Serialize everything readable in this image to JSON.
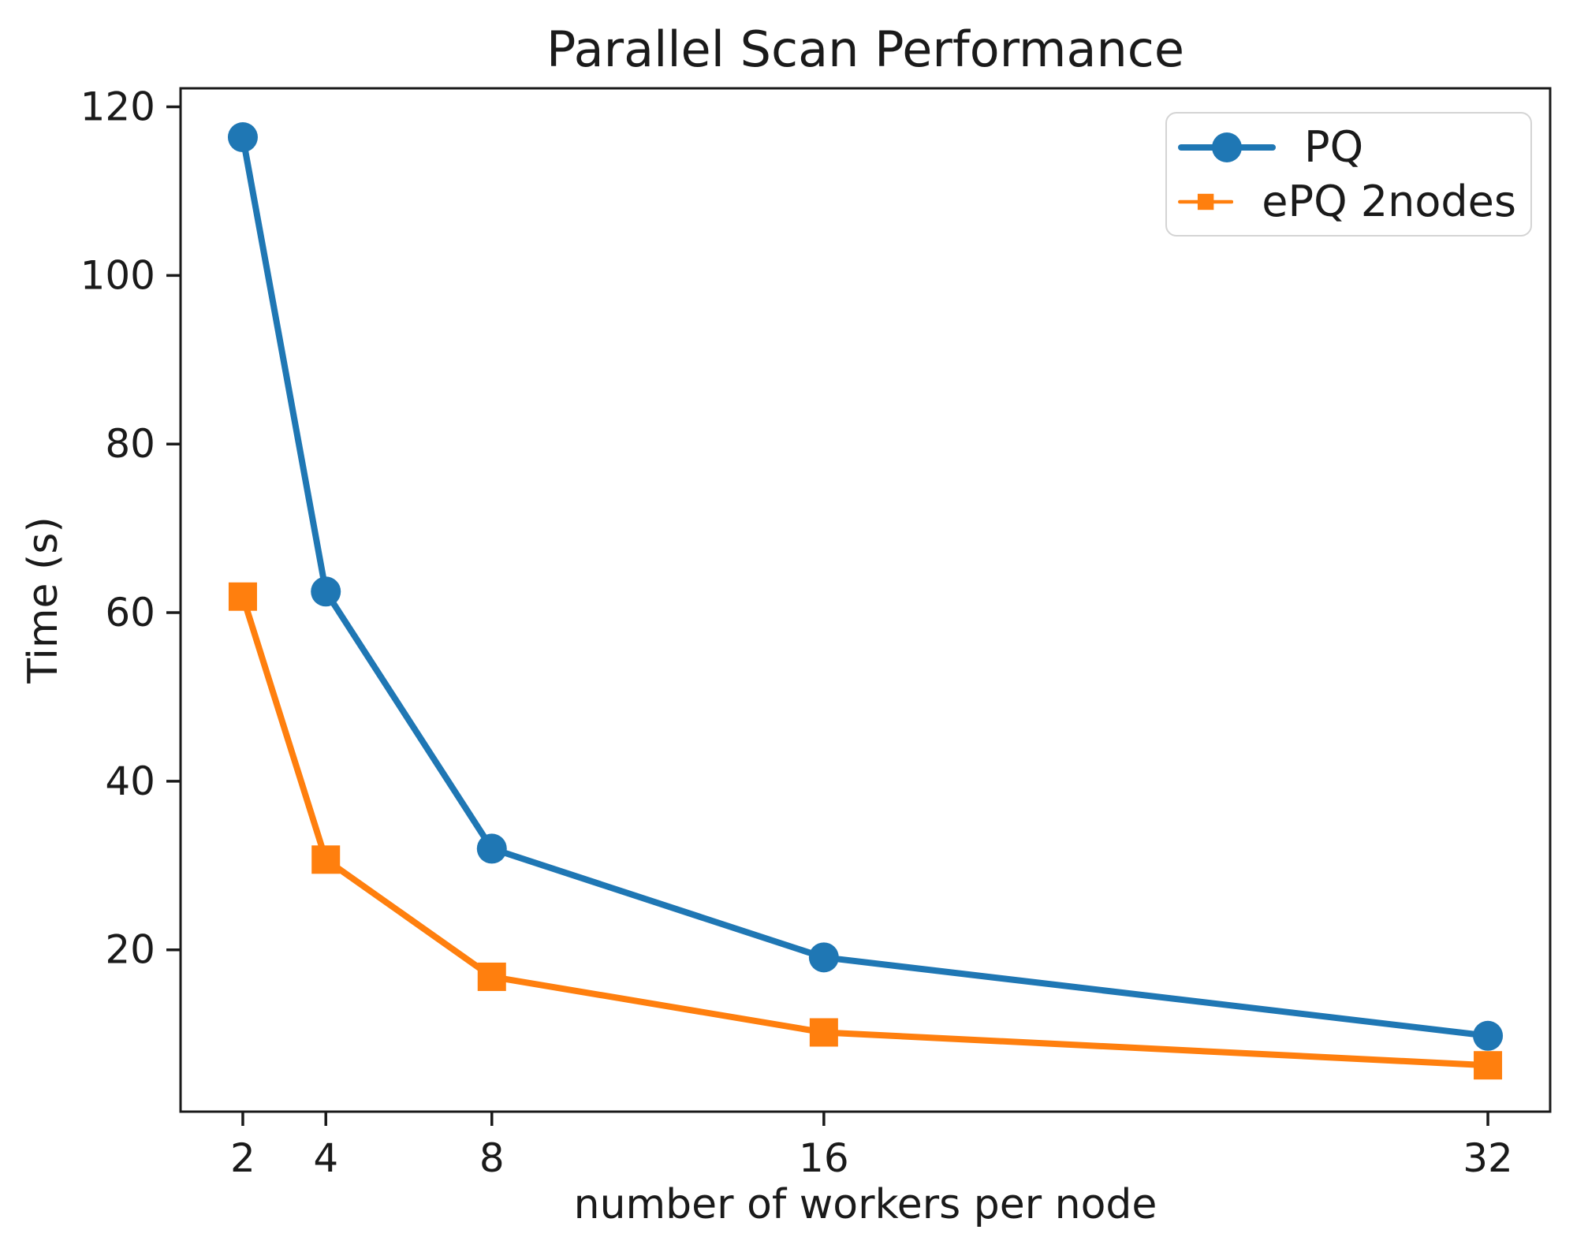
{
  "figure": {
    "background_color": "#ffffff",
    "text_color": "#1a1a1a",
    "axis_color": "#1a1a1a"
  },
  "chart_data": {
    "type": "line",
    "title": "Parallel Scan Performance",
    "xlabel": "number of workers per node",
    "ylabel": "Time (s)",
    "x": [
      2,
      4,
      8,
      16,
      32
    ],
    "series": [
      {
        "name": "PQ",
        "color": "#1f77b4",
        "marker": "circle",
        "values": [
          116.4,
          62.5,
          32.0,
          19.1,
          9.8
        ]
      },
      {
        "name": "ePQ 2nodes",
        "color": "#ff7f0e",
        "marker": "square",
        "values": [
          61.9,
          30.7,
          16.8,
          10.2,
          6.3
        ]
      }
    ],
    "xticks": [
      2,
      4,
      8,
      16,
      32
    ],
    "yticks": [
      20,
      40,
      60,
      80,
      100,
      120
    ],
    "xlim": [
      0.5,
      33.5
    ],
    "ylim": [
      0.8,
      122.2
    ],
    "xscale": "linear",
    "grid": false,
    "legend_position": "upper right"
  }
}
